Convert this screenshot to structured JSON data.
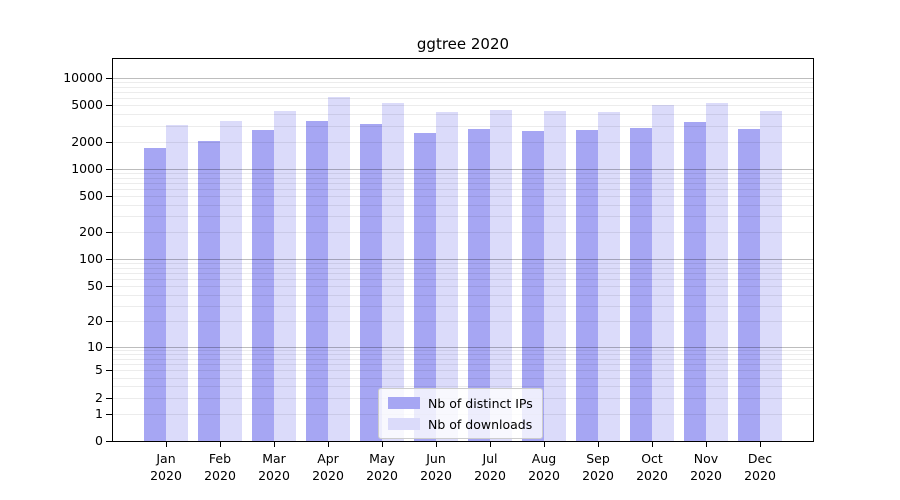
{
  "figure": {
    "background": "#ffffff"
  },
  "chart_data": {
    "type": "bar",
    "title": "ggtree 2020",
    "xlabel": "",
    "ylabel": "",
    "categories": [
      "Jan",
      "Feb",
      "Mar",
      "Apr",
      "May",
      "Jun",
      "Jul",
      "Aug",
      "Sep",
      "Oct",
      "Nov",
      "Dec"
    ],
    "year_label": "2020",
    "series": [
      {
        "name": "Nb of distinct IPs",
        "color": "#a6a6f3",
        "values": [
          1700,
          2050,
          2700,
          3400,
          3100,
          2500,
          2750,
          2600,
          2700,
          2800,
          3250,
          2750
        ]
      },
      {
        "name": "Nb of downloads",
        "color": "#dbdbfa",
        "values": [
          3050,
          3400,
          4300,
          6200,
          5300,
          4250,
          4500,
          4300,
          4200,
          5000,
          5300,
          4350
        ]
      }
    ],
    "y_scale": "log1p",
    "y_ticks": [
      10000,
      5000,
      2000,
      1000,
      500,
      200,
      100,
      50,
      20,
      10,
      5,
      2,
      1,
      0
    ],
    "ylim": [
      0,
      16000
    ],
    "grid": "horizontal major and minor log gridlines",
    "legend_position": "inside bottom center",
    "bar_outline": "none"
  }
}
